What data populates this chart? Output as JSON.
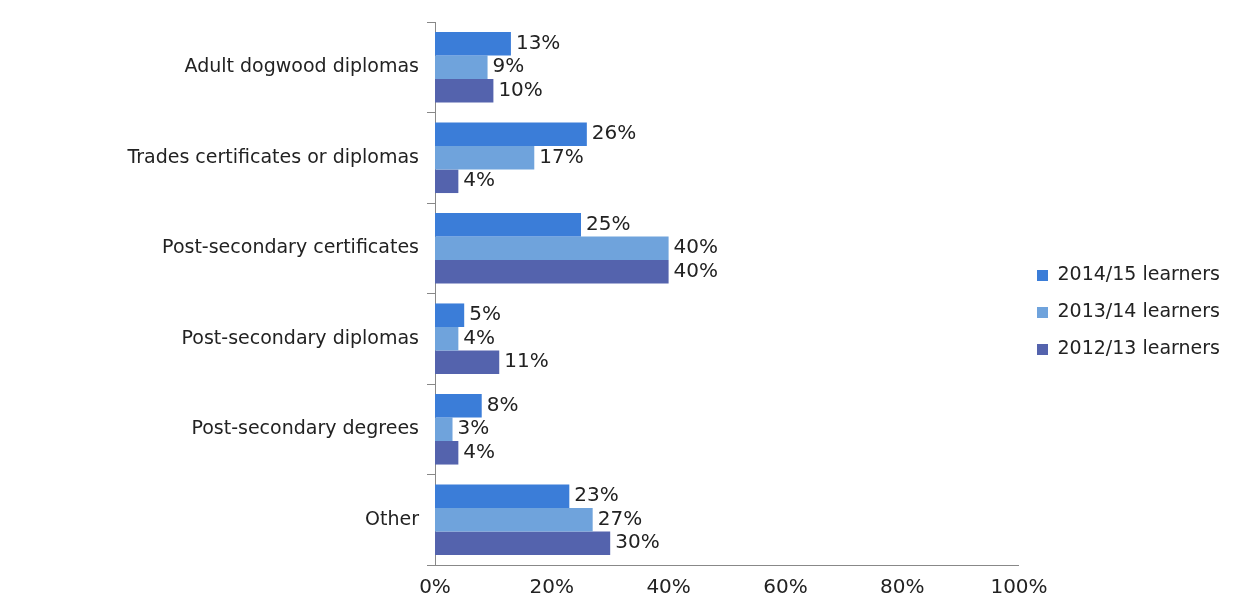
{
  "chart_data": {
    "type": "bar",
    "orientation": "horizontal",
    "categories": [
      "Adult dogwood diplomas",
      "Trades certificates or diplomas",
      "Post-secondary certificates",
      "Post-secondary diplomas",
      "Post-secondary degrees",
      "Other"
    ],
    "series": [
      {
        "name": "2014/15 learners",
        "color": "#3b7dd8",
        "values": [
          13,
          26,
          25,
          5,
          8,
          23
        ],
        "value_labels": [
          "13%",
          "26%",
          "25%",
          "5%",
          "8%",
          "23%"
        ]
      },
      {
        "name": "2013/14 learners",
        "color": "#6fa3dc",
        "values": [
          9,
          17,
          40,
          4,
          3,
          27
        ],
        "value_labels": [
          "9%",
          "17%",
          "40%",
          "4%",
          "3%",
          "27%"
        ]
      },
      {
        "name": "2012/13 learners",
        "color": "#5463ad",
        "values": [
          10,
          4,
          40,
          11,
          4,
          30
        ],
        "value_labels": [
          "10%",
          "4%",
          "40%",
          "11%",
          "4%",
          "30%"
        ]
      }
    ],
    "xlim": [
      0,
      100
    ],
    "xticks": [
      {
        "value": 0,
        "label": "0%"
      },
      {
        "value": 20,
        "label": "20%"
      },
      {
        "value": 40,
        "label": "40%"
      },
      {
        "value": 60,
        "label": "60%"
      },
      {
        "value": 80,
        "label": "80%"
      },
      {
        "value": 100,
        "label": "100%"
      }
    ],
    "grid": false,
    "legend": "right"
  }
}
